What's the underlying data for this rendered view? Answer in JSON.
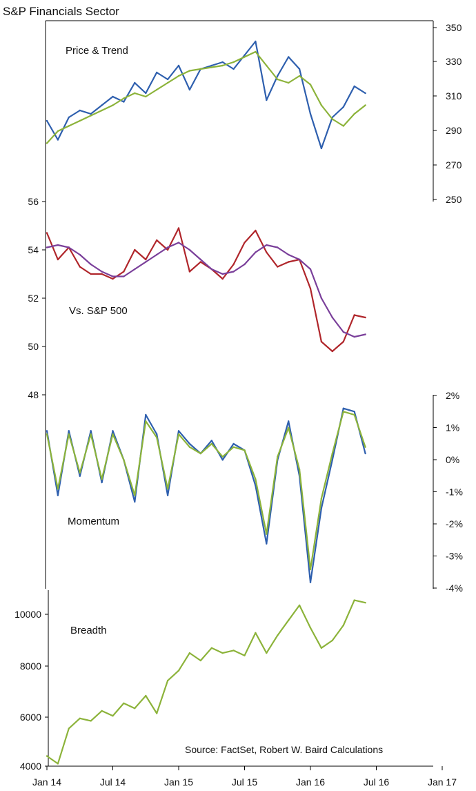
{
  "title": "S&P Financials Sector",
  "source": "Source: FactSet, Robert W. Baird Calculations",
  "x_ticks": [
    "Jan 14",
    "Jul 14",
    "Jan 15",
    "Jul 15",
    "Jan 16",
    "Jul 16",
    "Jan 17"
  ],
  "colors": {
    "blue": "#2e5fae",
    "green": "#8cb33a",
    "red": "#b0262b",
    "purple": "#7a3f9a"
  },
  "chart_data": [
    {
      "type": "line",
      "label": "Price & Trend",
      "y_ticks": [
        "350",
        "330",
        "310",
        "290",
        "270",
        "250"
      ],
      "ylim": [
        250,
        350
      ],
      "x": [
        "Jan 14",
        "Feb 14",
        "Mar 14",
        "Apr 14",
        "May 14",
        "Jun 14",
        "Jul 14",
        "Aug 14",
        "Sep 14",
        "Oct 14",
        "Nov 14",
        "Dec 14",
        "Jan 15",
        "Feb 15",
        "Mar 15",
        "Apr 15",
        "May 15",
        "Jun 15",
        "Jul 15",
        "Aug 15",
        "Sep 15",
        "Oct 15",
        "Nov 15",
        "Dec 15",
        "Jan 16",
        "Feb 16",
        "Mar 16",
        "Apr 16",
        "May 16",
        "Jun 16"
      ],
      "series": [
        {
          "color": "blue",
          "values": [
            296,
            285,
            298,
            302,
            300,
            305,
            310,
            307,
            318,
            312,
            324,
            320,
            328,
            314,
            326,
            328,
            330,
            326,
            334,
            342,
            308,
            322,
            333,
            326,
            300,
            280,
            298,
            304,
            316,
            312
          ]
        },
        {
          "color": "green",
          "values": [
            283,
            290,
            293,
            296,
            299,
            302,
            305,
            309,
            312,
            310,
            314,
            318,
            322,
            325,
            326,
            327,
            328,
            330,
            333,
            336,
            328,
            320,
            318,
            322,
            317,
            305,
            297,
            293,
            300,
            305
          ]
        }
      ]
    },
    {
      "type": "line",
      "label": "Vs. S&P 500",
      "y_ticks": [
        "56",
        "54",
        "52",
        "50",
        "48"
      ],
      "ylim": [
        48,
        56
      ],
      "x": [
        "Jan 14",
        "Feb 14",
        "Mar 14",
        "Apr 14",
        "May 14",
        "Jun 14",
        "Jul 14",
        "Aug 14",
        "Sep 14",
        "Oct 14",
        "Nov 14",
        "Dec 14",
        "Jan 15",
        "Feb 15",
        "Mar 15",
        "Apr 15",
        "May 15",
        "Jun 15",
        "Jul 15",
        "Aug 15",
        "Sep 15",
        "Oct 15",
        "Nov 15",
        "Dec 15",
        "Jan 16",
        "Feb 16",
        "Mar 16",
        "Apr 16",
        "May 16",
        "Jun 16"
      ],
      "series": [
        {
          "color": "red",
          "values": [
            54.7,
            53.6,
            54.1,
            53.3,
            53.0,
            53.0,
            52.8,
            53.1,
            54.0,
            53.6,
            54.4,
            54.0,
            54.9,
            53.1,
            53.5,
            53.2,
            52.8,
            53.4,
            54.3,
            54.8,
            53.9,
            53.3,
            53.5,
            53.6,
            52.4,
            50.2,
            49.8,
            50.2,
            51.3,
            51.2
          ]
        },
        {
          "color": "purple",
          "values": [
            54.1,
            54.2,
            54.1,
            53.8,
            53.4,
            53.1,
            52.9,
            52.9,
            53.2,
            53.5,
            53.8,
            54.1,
            54.3,
            54.0,
            53.6,
            53.2,
            53.0,
            53.1,
            53.4,
            53.9,
            54.2,
            54.1,
            53.8,
            53.6,
            53.2,
            52.0,
            51.2,
            50.6,
            50.4,
            50.5
          ]
        }
      ]
    },
    {
      "type": "line",
      "label": "Momentum",
      "y_ticks": [
        "2%",
        "1%",
        "0%",
        "-1%",
        "-2%",
        "-3%",
        "-4%"
      ],
      "ylim": [
        -4,
        2
      ],
      "x": [
        "Jan 14",
        "Feb 14",
        "Mar 14",
        "Apr 14",
        "May 14",
        "Jun 14",
        "Jul 14",
        "Aug 14",
        "Sep 14",
        "Oct 14",
        "Nov 14",
        "Dec 14",
        "Jan 15",
        "Feb 15",
        "Mar 15",
        "Apr 15",
        "May 15",
        "Jun 15",
        "Jul 15",
        "Aug 15",
        "Sep 15",
        "Oct 15",
        "Nov 15",
        "Dec 15",
        "Jan 16",
        "Feb 16",
        "Mar 16",
        "Apr 16",
        "May 16",
        "Jun 16"
      ],
      "series": [
        {
          "color": "blue",
          "values": [
            0.9,
            -1.1,
            0.9,
            -0.5,
            0.9,
            -0.7,
            0.9,
            0.0,
            -1.3,
            1.4,
            0.8,
            -1.1,
            0.9,
            0.5,
            0.2,
            0.6,
            0.0,
            0.5,
            0.3,
            -0.8,
            -2.6,
            0.0,
            1.2,
            -0.5,
            -3.8,
            -1.5,
            0.0,
            1.6,
            1.5,
            0.2
          ]
        },
        {
          "color": "green",
          "values": [
            0.8,
            -0.9,
            0.8,
            -0.4,
            0.8,
            -0.6,
            0.8,
            0.0,
            -1.1,
            1.2,
            0.7,
            -0.9,
            0.8,
            0.4,
            0.2,
            0.5,
            0.1,
            0.4,
            0.3,
            -0.6,
            -2.3,
            0.1,
            1.0,
            -0.3,
            -3.4,
            -1.2,
            0.2,
            1.5,
            1.4,
            0.4
          ]
        }
      ]
    },
    {
      "type": "line",
      "label": "Breadth",
      "y_ticks": [
        "10000",
        "8000",
        "6000",
        "4000"
      ],
      "ylim": [
        4000,
        11000
      ],
      "x": [
        "Jan 14",
        "Feb 14",
        "Mar 14",
        "Apr 14",
        "May 14",
        "Jun 14",
        "Jul 14",
        "Aug 14",
        "Sep 14",
        "Oct 14",
        "Nov 14",
        "Dec 14",
        "Jan 15",
        "Feb 15",
        "Mar 15",
        "Apr 15",
        "May 15",
        "Jun 15",
        "Jul 15",
        "Aug 15",
        "Sep 15",
        "Oct 15",
        "Nov 15",
        "Dec 15",
        "Jan 16",
        "Feb 16",
        "Mar 16",
        "Apr 16",
        "May 16",
        "Jun 16"
      ],
      "series": [
        {
          "color": "green",
          "values": [
            4400,
            4100,
            5500,
            5900,
            5800,
            6200,
            6000,
            6500,
            6300,
            6800,
            6100,
            7400,
            7800,
            8500,
            8200,
            8700,
            8500,
            8600,
            8400,
            9300,
            8500,
            9200,
            9800,
            10400,
            9500,
            8700,
            9000,
            9600,
            10600,
            10500
          ]
        }
      ]
    }
  ]
}
